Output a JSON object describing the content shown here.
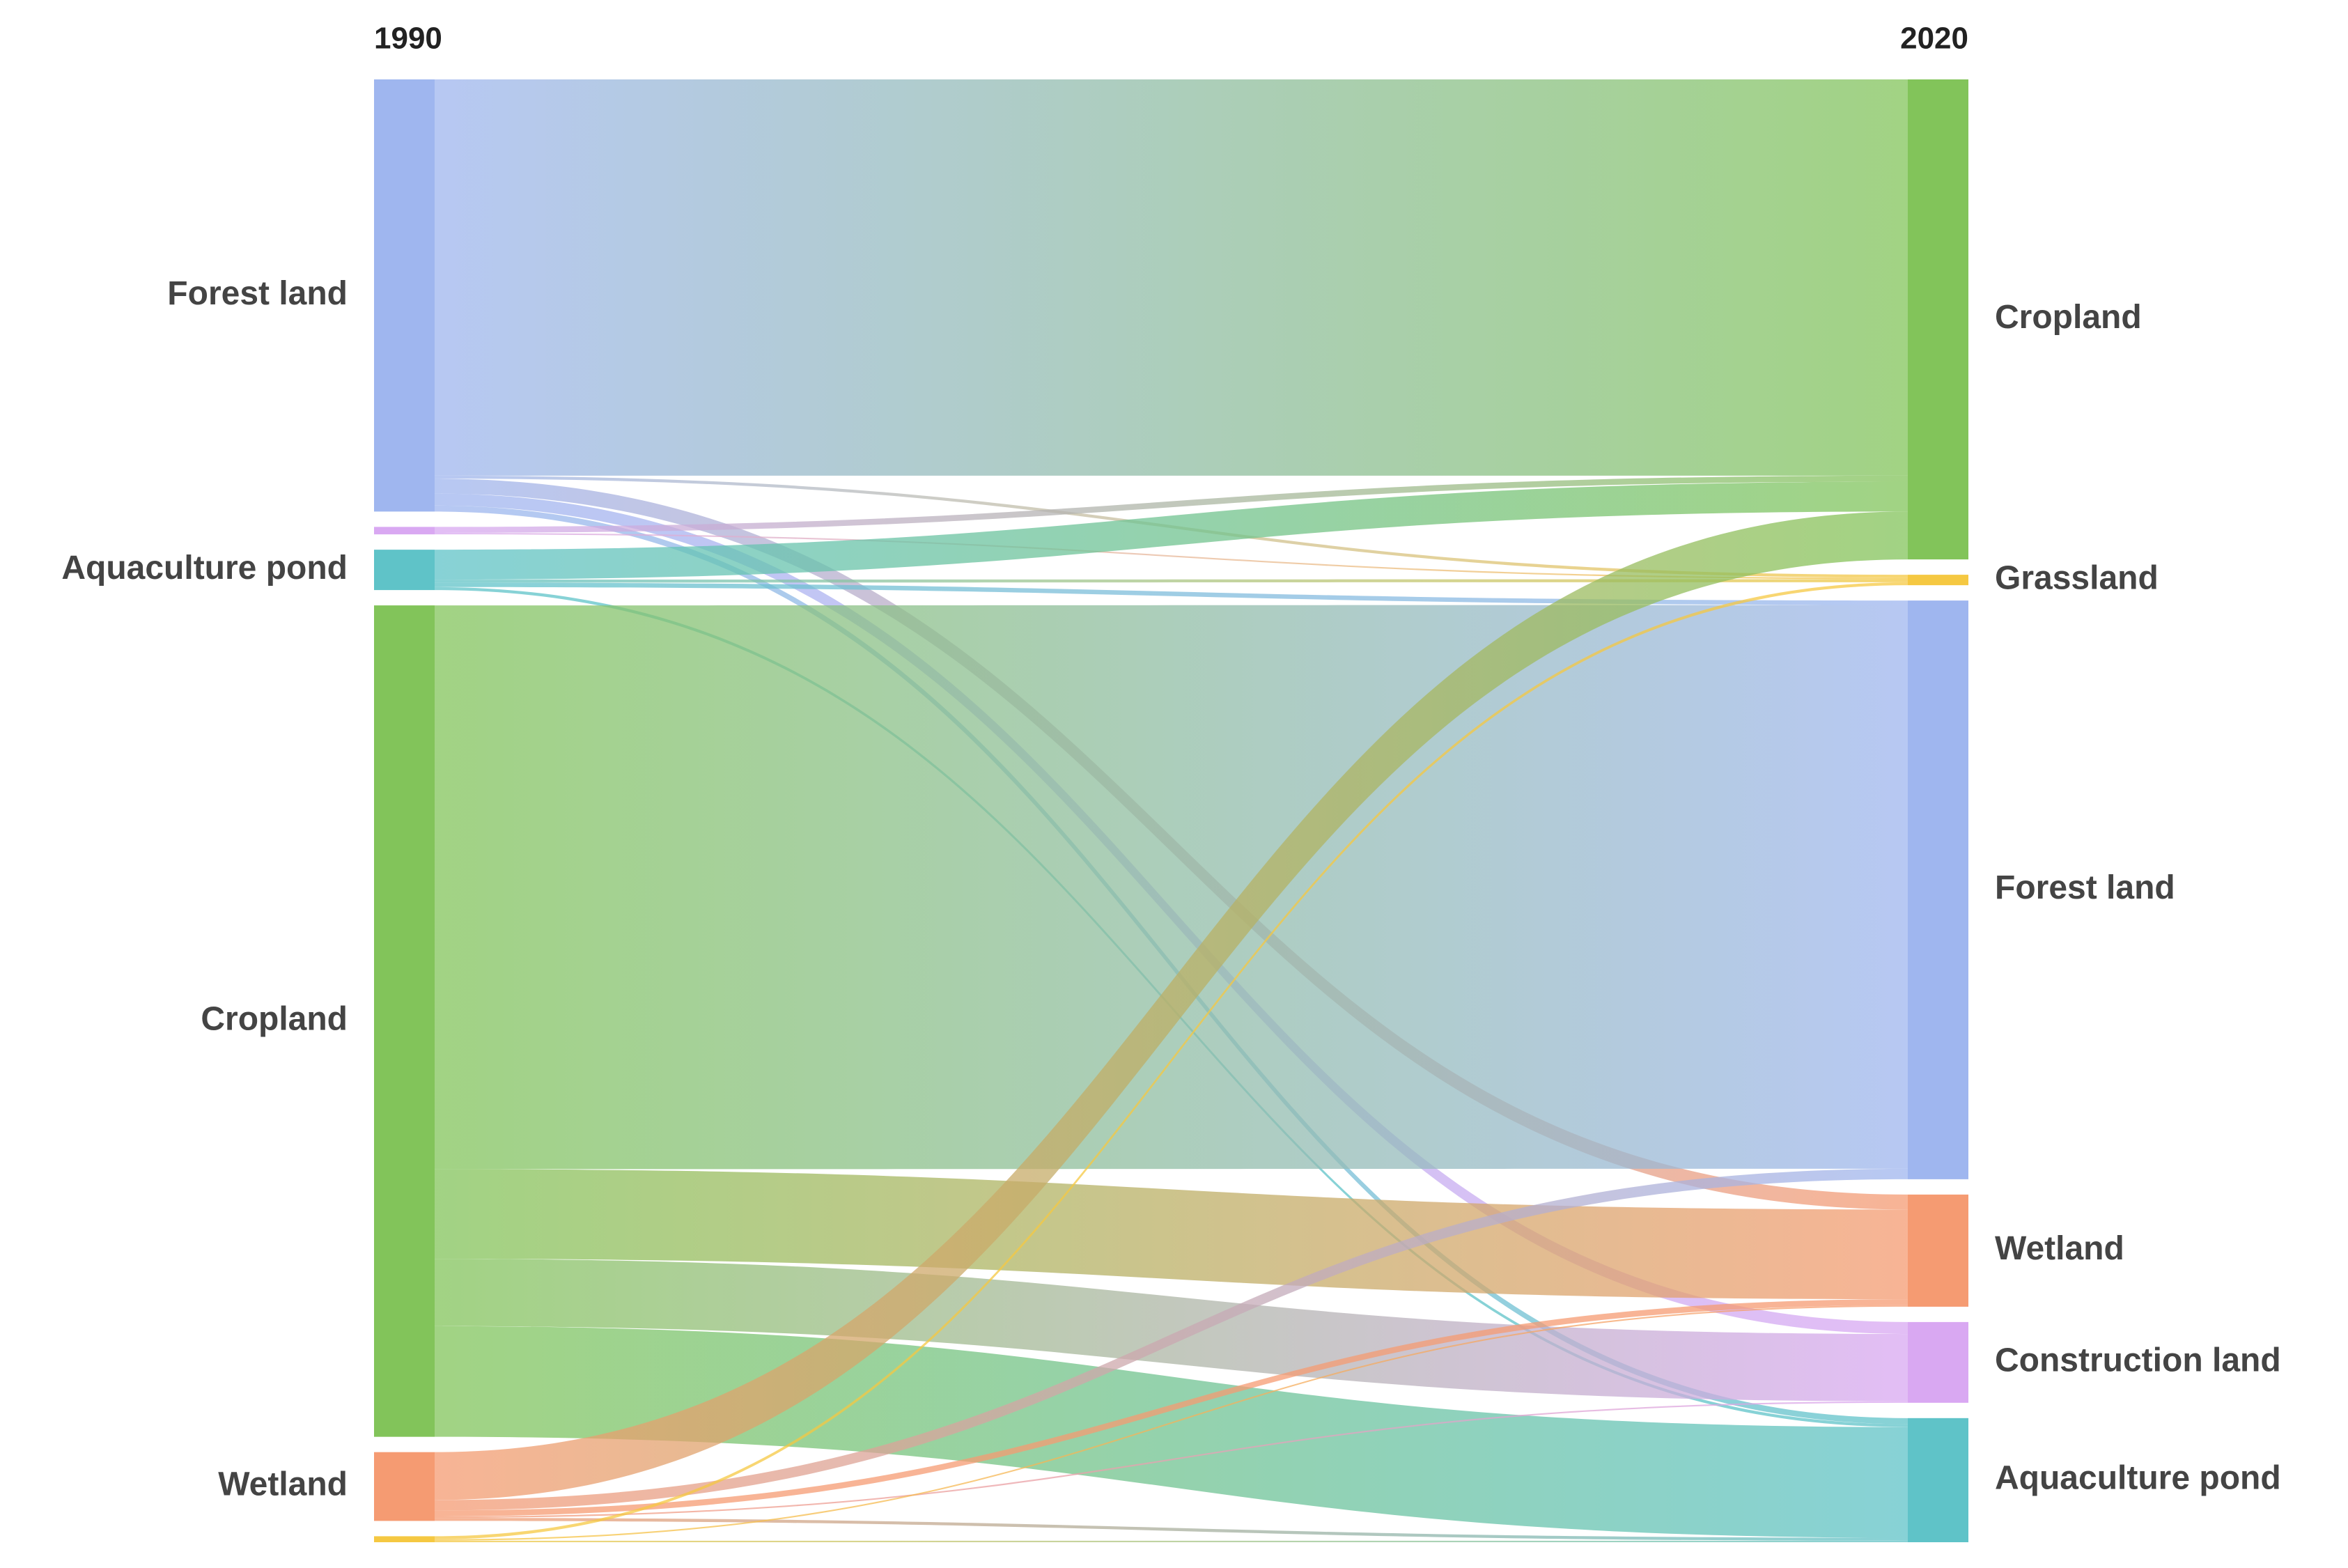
{
  "chart_data": {
    "type": "sankey",
    "left_title": "1990",
    "right_title": "2020",
    "sources": [
      {
        "label": "Forest land",
        "color": "#9fb6ef"
      },
      {
        "label": null,
        "color": "#d9a8f2"
      },
      {
        "label": "Aquaculture pond",
        "color": "#5fc3c8"
      },
      {
        "label": "Cropland",
        "color": "#82c45a"
      },
      {
        "label": "Wetland",
        "color": "#f59b72"
      },
      {
        "label": null,
        "color": "#f5c842"
      }
    ],
    "targets": [
      {
        "label": "Cropland",
        "color": "#82c45a"
      },
      {
        "label": "Grassland",
        "color": "#f5c842"
      },
      {
        "label": "Forest land",
        "color": "#9fb6ef"
      },
      {
        "label": "Wetland",
        "color": "#f59b72"
      },
      {
        "label": "Construction land",
        "color": "#d9a8f2"
      },
      {
        "label": "Aquaculture pond",
        "color": "#5fc3c8"
      }
    ],
    "links": [
      {
        "source": 0,
        "target": 0,
        "value": 265
      },
      {
        "source": 0,
        "target": 1,
        "value": 2
      },
      {
        "source": 0,
        "target": 3,
        "value": 10
      },
      {
        "source": 0,
        "target": 4,
        "value": 8
      },
      {
        "source": 0,
        "target": 5,
        "value": 4
      },
      {
        "source": 1,
        "target": 0,
        "value": 4
      },
      {
        "source": 1,
        "target": 1,
        "value": 1
      },
      {
        "source": 2,
        "target": 0,
        "value": 20
      },
      {
        "source": 2,
        "target": 1,
        "value": 2
      },
      {
        "source": 2,
        "target": 2,
        "value": 3
      },
      {
        "source": 2,
        "target": 5,
        "value": 2
      },
      {
        "source": 3,
        "target": 2,
        "value": 377
      },
      {
        "source": 3,
        "target": 3,
        "value": 60
      },
      {
        "source": 3,
        "target": 4,
        "value": 45
      },
      {
        "source": 3,
        "target": 5,
        "value": 74
      },
      {
        "source": 4,
        "target": 0,
        "value": 32
      },
      {
        "source": 4,
        "target": 2,
        "value": 7
      },
      {
        "source": 4,
        "target": 3,
        "value": 4
      },
      {
        "source": 4,
        "target": 4,
        "value": 1
      },
      {
        "source": 4,
        "target": 5,
        "value": 2
      },
      {
        "source": 5,
        "target": 1,
        "value": 2
      },
      {
        "source": 5,
        "target": 3,
        "value": 1
      },
      {
        "source": 5,
        "target": 5,
        "value": 1
      }
    ]
  }
}
